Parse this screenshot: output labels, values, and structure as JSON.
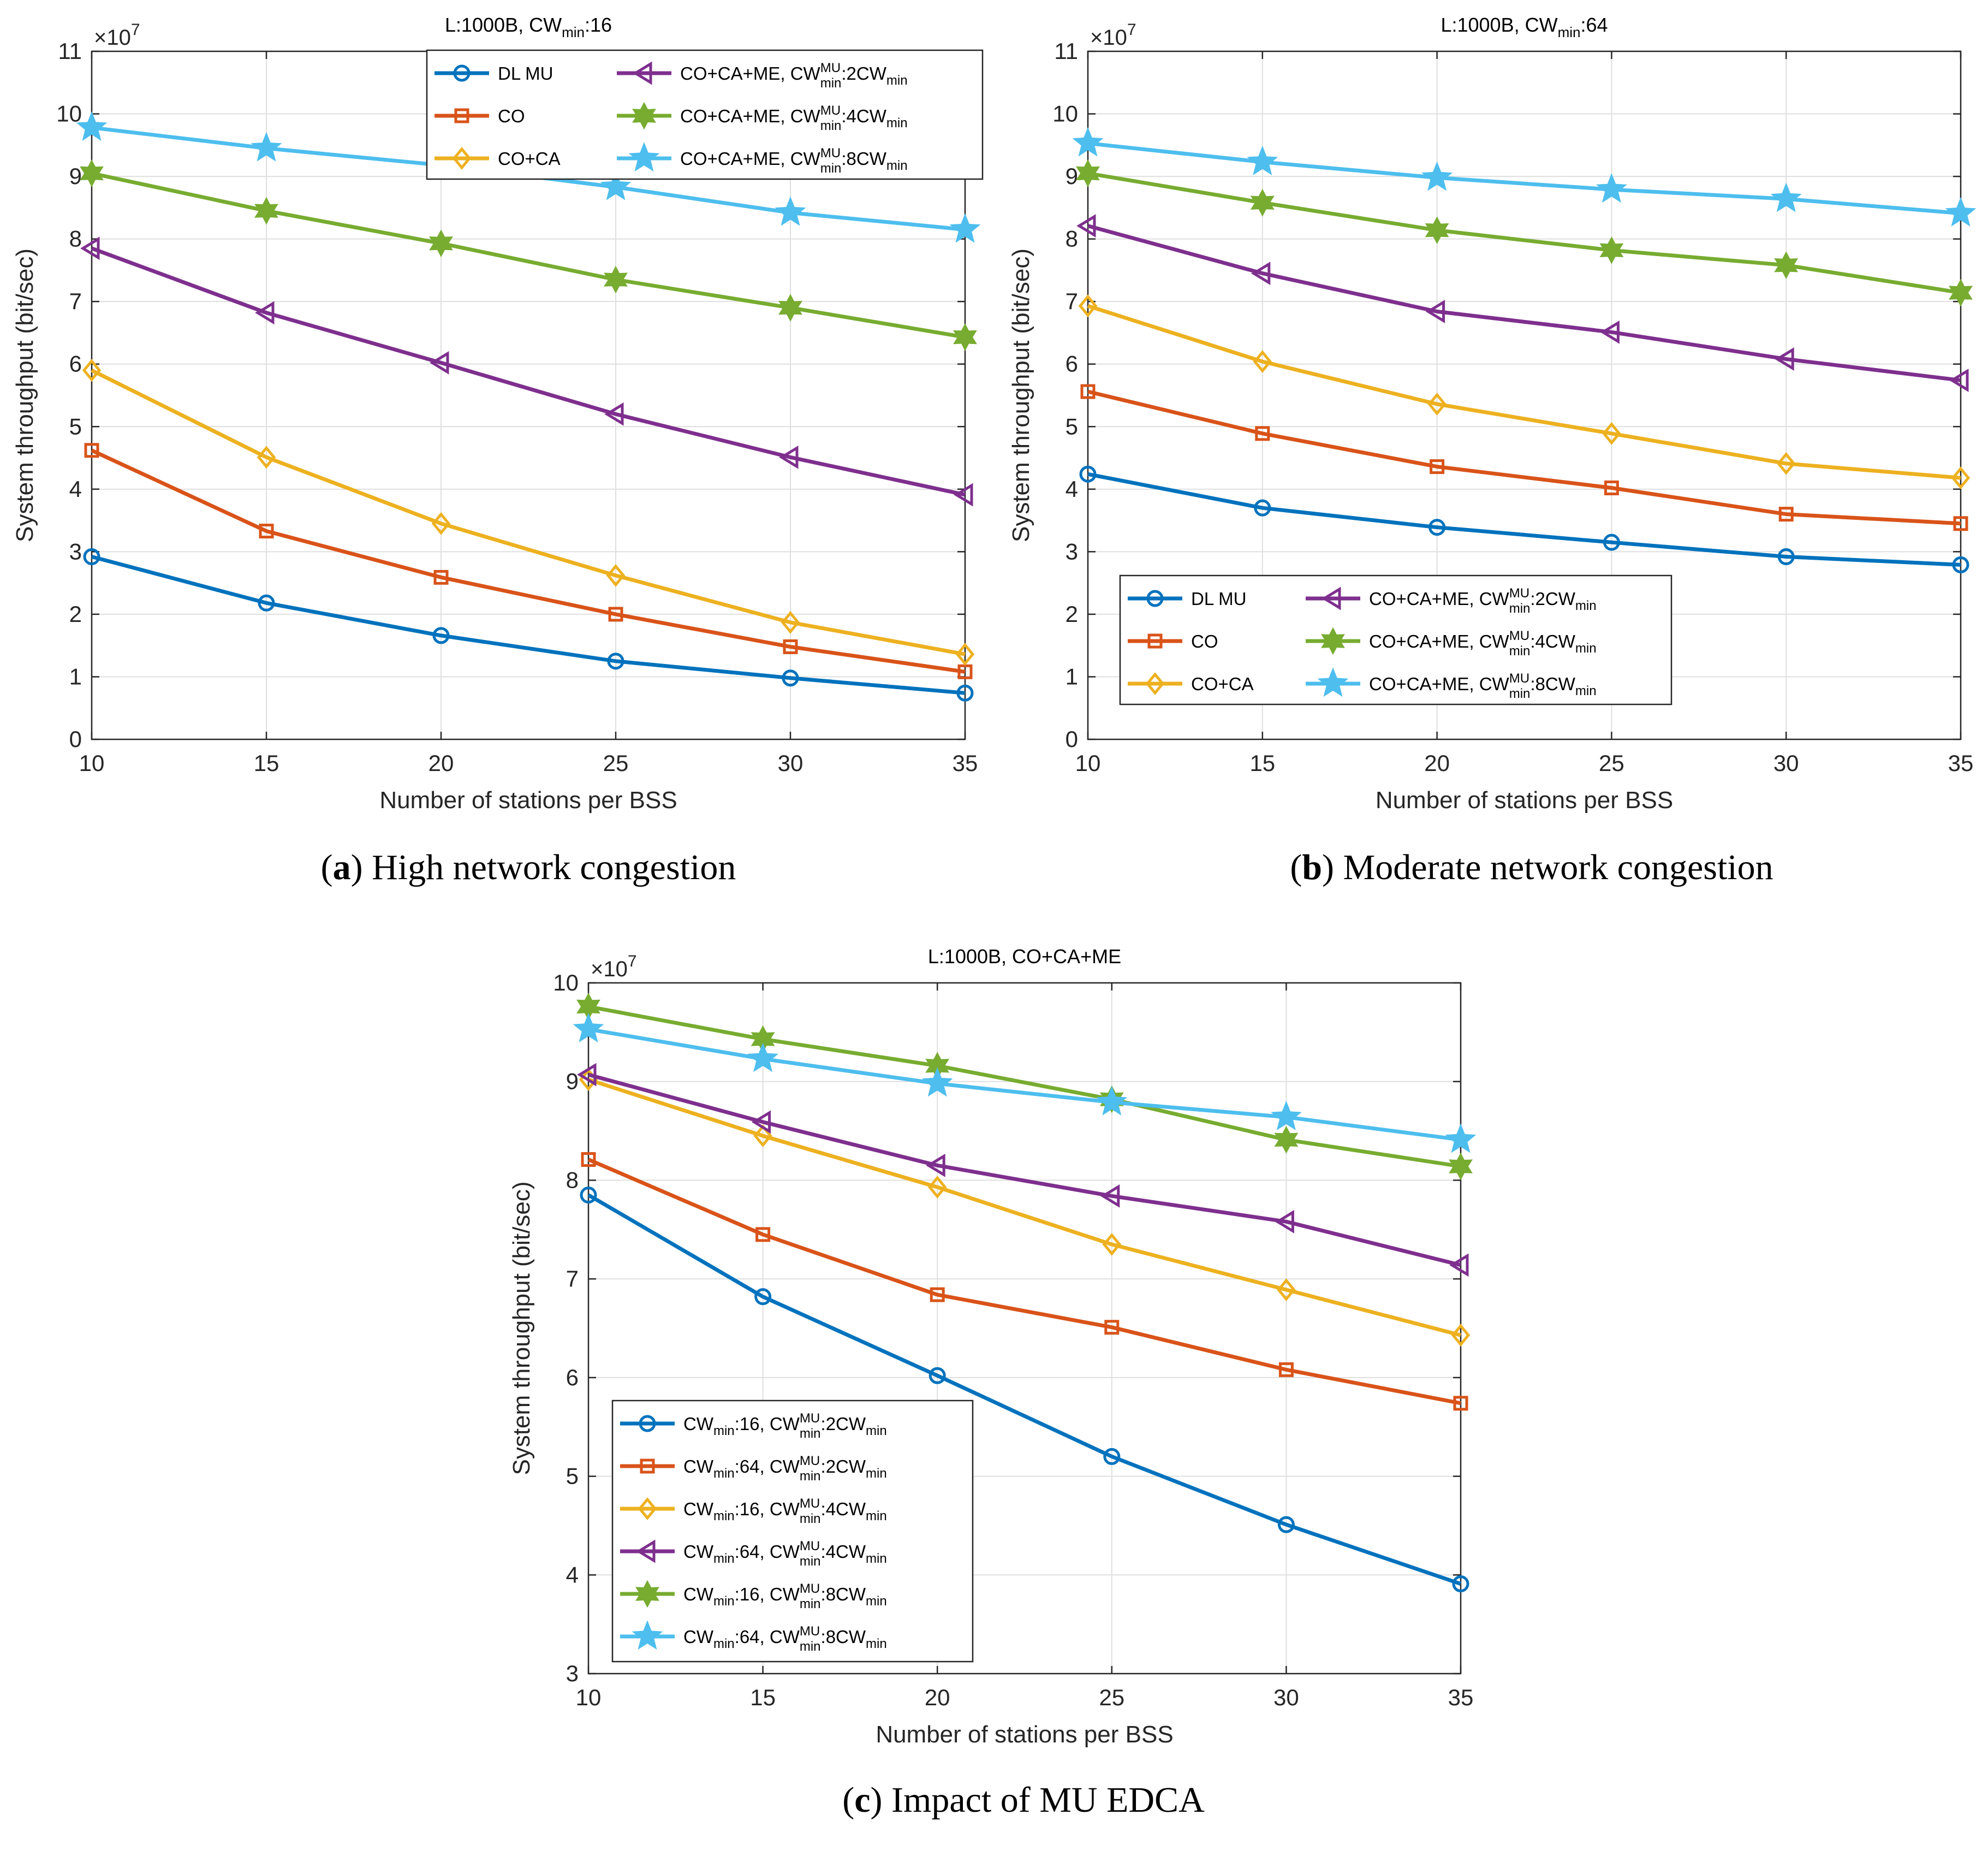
{
  "colors": {
    "blue": "#0072BD",
    "orange": "#D95319",
    "yellow": "#EDB120",
    "purple": "#7E2F8E",
    "green": "#77AC30",
    "cyan": "#4DBEEE",
    "grid": "#DFDFDF",
    "axis": "#262626"
  },
  "chart_data": [
    {
      "id": "a",
      "type": "line",
      "title_main": "L:1000B, CW",
      "title_sub": "min",
      "title_tail": ":16",
      "xlabel": "Number of stations per BSS",
      "ylabel": "System throughput (bit/sec)",
      "exponent_label": "×10",
      "exponent_power": "7",
      "xlim": [
        10,
        35
      ],
      "ylim": [
        0,
        11
      ],
      "xticks": [
        10,
        15,
        20,
        25,
        30,
        35
      ],
      "yticks": [
        0,
        1,
        2,
        3,
        4,
        5,
        6,
        7,
        8,
        9,
        10,
        11
      ],
      "grid": true,
      "legend_position": "top-right",
      "caption_letter": "a",
      "caption_text": " High network congestion",
      "x": [
        10,
        15,
        20,
        25,
        30,
        35
      ],
      "series": [
        {
          "name": "DL MU",
          "legend": {
            "pre": "DL MU"
          },
          "color": "blue",
          "marker": "circle",
          "values": [
            2.92,
            2.18,
            1.66,
            1.25,
            0.98,
            0.74
          ]
        },
        {
          "name": "CO",
          "legend": {
            "pre": "CO"
          },
          "color": "orange",
          "marker": "square",
          "values": [
            4.62,
            3.33,
            2.59,
            2.0,
            1.48,
            1.08
          ]
        },
        {
          "name": "CO+CA",
          "legend": {
            "pre": "CO+CA"
          },
          "color": "yellow",
          "marker": "diamond",
          "values": [
            5.9,
            4.51,
            3.45,
            2.62,
            1.87,
            1.36
          ]
        },
        {
          "name": "CO+CA+ME, CWminMU:2CWmin",
          "legend": {
            "pre": "CO+CA+ME, CW",
            "sup": "MU",
            "sub": "min",
            "post": ":2CW",
            "post_sub": "min"
          },
          "color": "purple",
          "marker": "triangle-left",
          "values": [
            7.85,
            6.82,
            6.02,
            5.2,
            4.51,
            3.91
          ]
        },
        {
          "name": "CO+CA+ME, CWminMU:4CWmin",
          "legend": {
            "pre": "CO+CA+ME, CW",
            "sup": "MU",
            "sub": "min",
            "post": ":4CW",
            "post_sub": "min"
          },
          "color": "green",
          "marker": "hexagram",
          "values": [
            9.05,
            8.45,
            7.93,
            7.35,
            6.9,
            6.43
          ]
        },
        {
          "name": "CO+CA+ME, CWminMU:8CWmin",
          "legend": {
            "pre": "CO+CA+ME, CW",
            "sup": "MU",
            "sub": "min",
            "post": ":8CW",
            "post_sub": "min"
          },
          "color": "cyan",
          "marker": "pentagram",
          "values": [
            9.78,
            9.45,
            9.18,
            8.83,
            8.42,
            8.15
          ]
        }
      ]
    },
    {
      "id": "b",
      "type": "line",
      "title_main": "L:1000B, CW",
      "title_sub": "min",
      "title_tail": ":64",
      "xlabel": "Number of stations per BSS",
      "ylabel": "System throughput (bit/sec)",
      "exponent_label": "×10",
      "exponent_power": "7",
      "xlim": [
        10,
        35
      ],
      "ylim": [
        0,
        11
      ],
      "xticks": [
        10,
        15,
        20,
        25,
        30,
        35
      ],
      "yticks": [
        0,
        1,
        2,
        3,
        4,
        5,
        6,
        7,
        8,
        9,
        10,
        11
      ],
      "grid": true,
      "legend_position": "bottom-center",
      "caption_letter": "b",
      "caption_text": " Moderate network congestion",
      "x": [
        10,
        15,
        20,
        25,
        30,
        35
      ],
      "series": [
        {
          "name": "DL MU",
          "legend": {
            "pre": "DL MU"
          },
          "color": "blue",
          "marker": "circle",
          "values": [
            4.24,
            3.7,
            3.39,
            3.15,
            2.92,
            2.79
          ]
        },
        {
          "name": "CO",
          "legend": {
            "pre": "CO"
          },
          "color": "orange",
          "marker": "square",
          "values": [
            5.56,
            4.89,
            4.36,
            4.02,
            3.6,
            3.45
          ]
        },
        {
          "name": "CO+CA",
          "legend": {
            "pre": "CO+CA"
          },
          "color": "yellow",
          "marker": "diamond",
          "values": [
            6.93,
            6.04,
            5.36,
            4.89,
            4.41,
            4.18
          ]
        },
        {
          "name": "CO+CA+ME, CWminMU:2CWmin",
          "legend": {
            "pre": "CO+CA+ME, CW",
            "sup": "MU",
            "sub": "min",
            "post": ":2CW",
            "post_sub": "min"
          },
          "color": "purple",
          "marker": "triangle-left",
          "values": [
            8.21,
            7.45,
            6.84,
            6.51,
            6.08,
            5.74
          ]
        },
        {
          "name": "CO+CA+ME, CWminMU:4CWmin",
          "legend": {
            "pre": "CO+CA+ME, CW",
            "sup": "MU",
            "sub": "min",
            "post": ":4CW",
            "post_sub": "min"
          },
          "color": "green",
          "marker": "hexagram",
          "values": [
            9.05,
            8.58,
            8.14,
            7.82,
            7.58,
            7.14
          ]
        },
        {
          "name": "CO+CA+ME, CWminMU:8CWmin",
          "legend": {
            "pre": "CO+CA+ME, CW",
            "sup": "MU",
            "sub": "min",
            "post": ":8CW",
            "post_sub": "min"
          },
          "color": "cyan",
          "marker": "pentagram",
          "values": [
            9.53,
            9.23,
            8.98,
            8.79,
            8.64,
            8.41
          ]
        }
      ]
    },
    {
      "id": "c",
      "type": "line",
      "title_main": "L:1000B, CO+CA+ME",
      "title_sub": "",
      "title_tail": "",
      "xlabel": "Number of stations per BSS",
      "ylabel": "System throughput (bit/sec)",
      "exponent_label": "×10",
      "exponent_power": "7",
      "xlim": [
        10,
        35
      ],
      "ylim": [
        3,
        10
      ],
      "xticks": [
        10,
        15,
        20,
        25,
        30,
        35
      ],
      "yticks": [
        3,
        4,
        5,
        6,
        7,
        8,
        9,
        10
      ],
      "grid": true,
      "legend_position": "bottom-left",
      "caption_letter": "c",
      "caption_text": " Impact of MU EDCA",
      "x": [
        10,
        15,
        20,
        25,
        30,
        35
      ],
      "series": [
        {
          "name": "CWmin:16, CWminMU:2CWmin",
          "legend": {
            "pre": "CW",
            "pre_sub": "min",
            "mid": ":16, CW",
            "sup": "MU",
            "sub": "min",
            "post": ":2CW",
            "post_sub": "min"
          },
          "color": "blue",
          "marker": "circle",
          "values": [
            7.85,
            6.82,
            6.02,
            5.2,
            4.51,
            3.91
          ]
        },
        {
          "name": "CWmin:64, CWminMU:2CWmin",
          "legend": {
            "pre": "CW",
            "pre_sub": "min",
            "mid": ":64, CW",
            "sup": "MU",
            "sub": "min",
            "post": ":2CW",
            "post_sub": "min"
          },
          "color": "orange",
          "marker": "square",
          "values": [
            8.21,
            7.45,
            6.84,
            6.51,
            6.08,
            5.74
          ]
        },
        {
          "name": "CWmin:16, CWminMU:4CWmin",
          "legend": {
            "pre": "CW",
            "pre_sub": "min",
            "mid": ":16, CW",
            "sup": "MU",
            "sub": "min",
            "post": ":4CW",
            "post_sub": "min"
          },
          "color": "yellow",
          "marker": "diamond",
          "values": [
            9.02,
            8.45,
            7.93,
            7.35,
            6.89,
            6.43
          ]
        },
        {
          "name": "CWmin:64, CWminMU:4CWmin",
          "legend": {
            "pre": "CW",
            "pre_sub": "min",
            "mid": ":64, CW",
            "sup": "MU",
            "sub": "min",
            "post": ":4CW",
            "post_sub": "min"
          },
          "color": "purple",
          "marker": "triangle-left",
          "values": [
            9.07,
            8.59,
            8.15,
            7.84,
            7.58,
            7.14
          ]
        },
        {
          "name": "CWmin:16, CWminMU:8CWmin",
          "legend": {
            "pre": "CW",
            "pre_sub": "min",
            "mid": ":16, CW",
            "sup": "MU",
            "sub": "min",
            "post": ":8CW",
            "post_sub": "min"
          },
          "color": "green",
          "marker": "hexagram",
          "values": [
            9.76,
            9.43,
            9.16,
            8.82,
            8.41,
            8.14
          ]
        },
        {
          "name": "CWmin:64, CWminMU:8CWmin",
          "legend": {
            "pre": "CW",
            "pre_sub": "min",
            "mid": ":64, CW",
            "sup": "MU",
            "sub": "min",
            "post": ":8CW",
            "post_sub": "min"
          },
          "color": "cyan",
          "marker": "pentagram",
          "values": [
            9.53,
            9.23,
            8.98,
            8.79,
            8.64,
            8.41
          ]
        }
      ]
    }
  ]
}
